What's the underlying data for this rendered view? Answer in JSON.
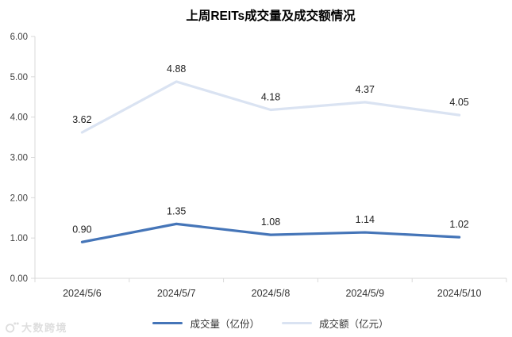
{
  "header": {
    "title": "上周REITs成交量及成交额情况"
  },
  "watermark": {
    "text": "大数跨境"
  },
  "legend": {
    "items": [
      {
        "label": "成交量（亿份）",
        "color": "#4575b8"
      },
      {
        "label": "成交额（亿元）",
        "color": "#dae3f2"
      }
    ]
  },
  "chart_data": {
    "type": "line",
    "title": "上周REITs成交量及成交额情况",
    "categories": [
      "2024/5/6",
      "2024/5/7",
      "2024/5/8",
      "2024/5/9",
      "2024/5/10"
    ],
    "series": [
      {
        "name": "成交量（亿份）",
        "values": [
          0.9,
          1.35,
          1.08,
          1.14,
          1.02
        ],
        "color": "#4575b8",
        "stroke_width": 3.2
      },
      {
        "name": "成交额（亿元）",
        "values": [
          3.62,
          4.88,
          4.18,
          4.37,
          4.05
        ],
        "color": "#dae3f2",
        "stroke_width": 3.2
      }
    ],
    "ylim": [
      0,
      6
    ],
    "ytick_labels": [
      "0.00",
      "1.00",
      "2.00",
      "3.00",
      "4.00",
      "5.00",
      "6.00"
    ],
    "data_labels": true,
    "grid": false,
    "legend_position": "bottom",
    "axis_color": "#d9d9d9",
    "tick_label_color": "#404040",
    "data_label_color": "#1f1f1f"
  }
}
